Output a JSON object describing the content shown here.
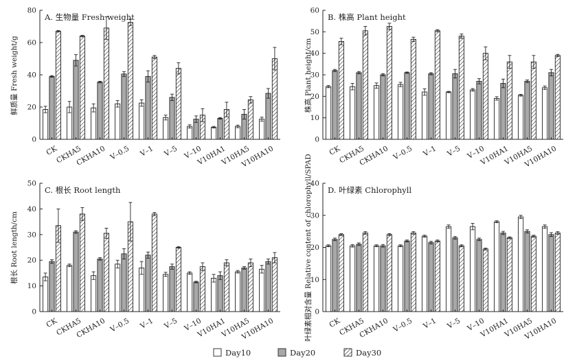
{
  "legend": {
    "items": [
      {
        "label": "Day10",
        "pattern": "white"
      },
      {
        "label": "Day20",
        "pattern": "gray"
      },
      {
        "label": "Day30",
        "pattern": "hatch"
      }
    ]
  },
  "colors": {
    "axis": "#222222",
    "day10_fill": "#ffffff",
    "day20_fill": "#a8a8a8",
    "day30_hatch": "#333333"
  },
  "chart_data": [
    {
      "type": "bar",
      "title": "A. 生物量 Fresh weight",
      "xlabel": "",
      "ylabel": "鲜质量 Fresh weight/g",
      "ylim": [
        0,
        80
      ],
      "yticks": [
        "0",
        "20",
        "40",
        "60",
        "80"
      ],
      "categories": [
        "CK",
        "CKHA5",
        "CKHA10",
        "V–0.5",
        "V–1",
        "V–5",
        "V–10",
        "V10HA1",
        "V10HA5",
        "V10HA10"
      ],
      "series": [
        {
          "name": "Day10",
          "values": [
            18.5,
            20,
            19.5,
            22,
            22.5,
            13.5,
            8,
            7.5,
            8,
            12.5
          ],
          "errors": [
            2,
            3.5,
            2.5,
            2,
            2,
            1.5,
            1,
            0.5,
            0.8,
            1.2
          ]
        },
        {
          "name": "Day20",
          "values": [
            39,
            49,
            35.5,
            40.5,
            39,
            26,
            12.5,
            13,
            15.5,
            28.5
          ],
          "errors": [
            0.5,
            3.5,
            0.5,
            1.5,
            3.5,
            2,
            2,
            0.5,
            3,
            3
          ]
        },
        {
          "name": "Day30",
          "values": [
            67,
            64,
            69,
            72.5,
            51,
            44,
            15,
            18.5,
            24.5,
            50
          ],
          "errors": [
            0.5,
            0.5,
            7,
            2,
            1,
            3.5,
            4,
            4.5,
            2,
            7
          ]
        }
      ]
    },
    {
      "type": "bar",
      "title": "B. 株高 Plant height",
      "xlabel": "",
      "ylabel": "株高 Plant height/cm",
      "ylim": [
        0,
        60
      ],
      "yticks": [
        "0",
        "10",
        "20",
        "30",
        "40",
        "50",
        "60"
      ],
      "categories": [
        "CK",
        "CKHA5",
        "CKHA10",
        "V–0.5",
        "V–1",
        "V–5",
        "V–10",
        "V10HA1",
        "V10HA5",
        "V10HA10"
      ],
      "series": [
        {
          "name": "Day10",
          "values": [
            24.5,
            24.5,
            25,
            25.5,
            22,
            22,
            23,
            19,
            20.5,
            24
          ],
          "errors": [
            0.5,
            1.5,
            1.2,
            1,
            1.5,
            0.3,
            0.6,
            0.8,
            0.4,
            0.8
          ]
        },
        {
          "name": "Day20",
          "values": [
            32,
            31,
            30,
            31,
            30.5,
            30.5,
            27,
            26,
            27,
            31
          ],
          "errors": [
            0.5,
            0.5,
            0.5,
            0.3,
            0.5,
            2,
            1.2,
            2,
            0.6,
            1.5
          ]
        },
        {
          "name": "Day30",
          "values": [
            45.5,
            50.5,
            52.5,
            46.5,
            50.5,
            48,
            40,
            36,
            36,
            39
          ],
          "errors": [
            1.5,
            2,
            1.5,
            1,
            0.5,
            1,
            3,
            3,
            3,
            0.5
          ]
        }
      ]
    },
    {
      "type": "bar",
      "title": "C. 根长 Root length",
      "xlabel": "",
      "ylabel": "根长 Root length/cm",
      "ylim": [
        0,
        50
      ],
      "yticks": [
        "0",
        "10",
        "20",
        "30",
        "40",
        "50"
      ],
      "categories": [
        "CK",
        "CKHA5",
        "CKHA10",
        "V–0.5",
        "V–1",
        "V–5",
        "V–10",
        "V10HA1",
        "V10HA5",
        "V10HA10"
      ],
      "series": [
        {
          "name": "Day10",
          "values": [
            13.5,
            18,
            14,
            18.5,
            17,
            14.5,
            15,
            13,
            15.5,
            16.5
          ],
          "errors": [
            1.5,
            0.5,
            1.5,
            1.5,
            2.5,
            0.8,
            0.5,
            1.5,
            0.5,
            1.5
          ]
        },
        {
          "name": "Day20",
          "values": [
            19.5,
            31,
            20.5,
            22.5,
            22,
            17.5,
            11.5,
            14,
            17,
            19.5
          ],
          "errors": [
            0.7,
            0.5,
            0.5,
            2,
            1.2,
            1,
            0.3,
            1.5,
            0.5,
            1
          ]
        },
        {
          "name": "Day30",
          "values": [
            33.5,
            38,
            30.5,
            35,
            38,
            25,
            17.5,
            19,
            19,
            21
          ],
          "errors": [
            6.5,
            2.5,
            2,
            7.5,
            0.6,
            0.3,
            1.5,
            1.2,
            1.5,
            2
          ]
        }
      ]
    },
    {
      "type": "bar",
      "title": "D. 叶绿素 Chlorophyll",
      "xlabel": "",
      "ylabel": "叶绿素相对含量 Relative content of chlorophyll/SPAD",
      "ylim": [
        0,
        40
      ],
      "yticks": [
        "0",
        "10",
        "20",
        "30",
        "40"
      ],
      "categories": [
        "CK",
        "CKHA5",
        "CKHA10",
        "V–0.5",
        "V–1",
        "V–5",
        "V–10",
        "V10HA1",
        "V10HA5",
        "V10HA10"
      ],
      "series": [
        {
          "name": "Day10",
          "values": [
            20.5,
            20.5,
            20.5,
            20.5,
            23.5,
            26.5,
            26.5,
            28,
            29.5,
            26.5
          ],
          "errors": [
            0.3,
            0.4,
            0.3,
            0.3,
            0.3,
            0.5,
            1,
            0.3,
            0.5,
            0.5
          ]
        },
        {
          "name": "Day20",
          "values": [
            22.5,
            21,
            20.5,
            22,
            21.5,
            23,
            22.5,
            24.5,
            25,
            24
          ],
          "errors": [
            0.4,
            0.4,
            0.4,
            0.3,
            0.4,
            0.4,
            0.4,
            0.5,
            0.5,
            0.6
          ]
        },
        {
          "name": "Day30",
          "values": [
            24,
            24.5,
            24,
            24.5,
            22,
            20.5,
            19.5,
            23,
            23.5,
            24.5
          ],
          "errors": [
            0.3,
            0.4,
            0.3,
            0.4,
            0.3,
            0.3,
            0.3,
            0.3,
            0.3,
            0.4
          ]
        }
      ]
    }
  ]
}
